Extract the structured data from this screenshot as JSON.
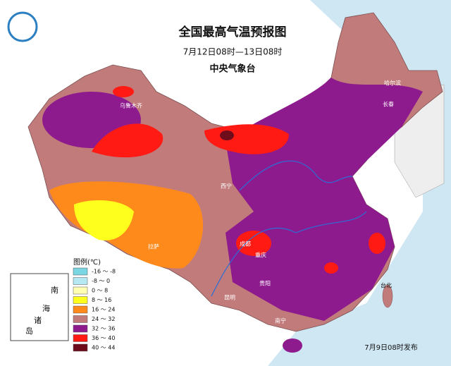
{
  "header": {
    "title": "全国最高气温预报图",
    "period": "7月12日08时—13日08时",
    "issuer": "中央气象台"
  },
  "legend": {
    "title": "图例(℃)",
    "items": [
      {
        "label": "-16 ～ -8",
        "color": "#79d6e2"
      },
      {
        "label": "-8 ～ 0",
        "color": "#b4e8f2"
      },
      {
        "label": "0 ～ 8",
        "color": "#ffffb4"
      },
      {
        "label": "8 ～ 16",
        "color": "#ffff1e"
      },
      {
        "label": "16 ～ 24",
        "color": "#ff8a1c"
      },
      {
        "label": "24 ～ 32",
        "color": "#c27b7b"
      },
      {
        "label": "32 ～ 36",
        "color": "#8e1b8e"
      },
      {
        "label": "36 ～ 40",
        "color": "#ff1a14"
      },
      {
        "label": "40 ～ 44",
        "color": "#6e0c1c"
      }
    ]
  },
  "inset": {
    "labels": [
      "南",
      "海",
      "诸",
      "岛"
    ]
  },
  "cities": [
    "乌鲁木齐",
    "西宁",
    "拉萨",
    "成都",
    "重庆",
    "贵阳",
    "昆明",
    "南宁",
    "台北",
    "长春",
    "哈尔滨"
  ],
  "footer": "7月9日08时发布"
}
